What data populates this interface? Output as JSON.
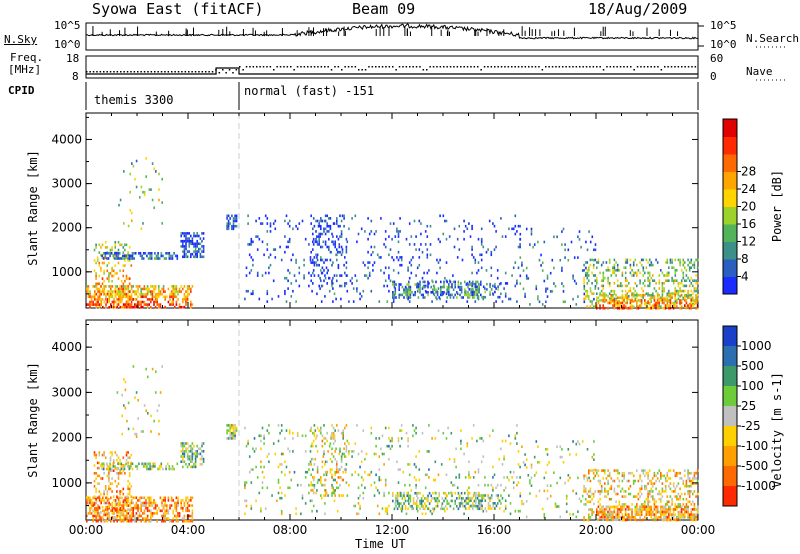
{
  "header": {
    "station": "Syowa East (fitACF)",
    "beam": "Beam 09",
    "date": "18/Aug/2009"
  },
  "panels": {
    "nsky": {
      "label": "N.Sky",
      "top": "10^5",
      "bottom": "10^0",
      "right_label": "N.Search",
      "right_top": "10^5",
      "right_bottom": "10^0"
    },
    "freq": {
      "label_line1": "Freq.",
      "label_line2": "[MHz]",
      "top": "18",
      "bottom": "8",
      "right_label": "Nave",
      "right_top": "60",
      "right_bottom": "0"
    },
    "cpid": {
      "label": "CPID",
      "mode1": "themis 3300",
      "mode2": "normal (fast) -151"
    }
  },
  "chart_data": [
    {
      "type": "heatmap",
      "name": "power",
      "ylabel": "Slant Range [km]",
      "xlabel": "",
      "ylim": [
        180,
        4600
      ],
      "yticks": [
        "1000",
        "2000",
        "3000",
        "4000"
      ],
      "colorbar": {
        "label": "Power [dB]",
        "ticks": [
          "4",
          "8",
          "12",
          "16",
          "20",
          "24",
          "28"
        ],
        "colors": [
          "#1a2cff",
          "#2a5fc0",
          "#3d8f8a",
          "#52b35a",
          "#9cd22a",
          "#ffd400",
          "#ffa500",
          "#ff6a00",
          "#ff2a00",
          "#e00000"
        ]
      }
    },
    {
      "type": "heatmap",
      "name": "velocity",
      "ylabel": "Slant Range [km]",
      "xlabel": "Time UT",
      "ylim": [
        180,
        4600
      ],
      "yticks": [
        "1000",
        "2000",
        "3000",
        "4000"
      ],
      "xticks": [
        "00:00",
        "04:00",
        "08:00",
        "12:00",
        "16:00",
        "20:00",
        "00:00"
      ],
      "colorbar": {
        "label": "Velocity [m s-1]",
        "ticks": [
          "1000",
          "500",
          "100",
          "25",
          "-25",
          "-100",
          "-500",
          "-1000"
        ],
        "colors": [
          "#1a3fc8",
          "#2b6fb0",
          "#3c9a6a",
          "#6dcc3a",
          "#c0c0c0",
          "#ffd000",
          "#ffa000",
          "#ff6a00",
          "#ff2a00"
        ]
      }
    }
  ],
  "x_axis_label": "Time UT"
}
